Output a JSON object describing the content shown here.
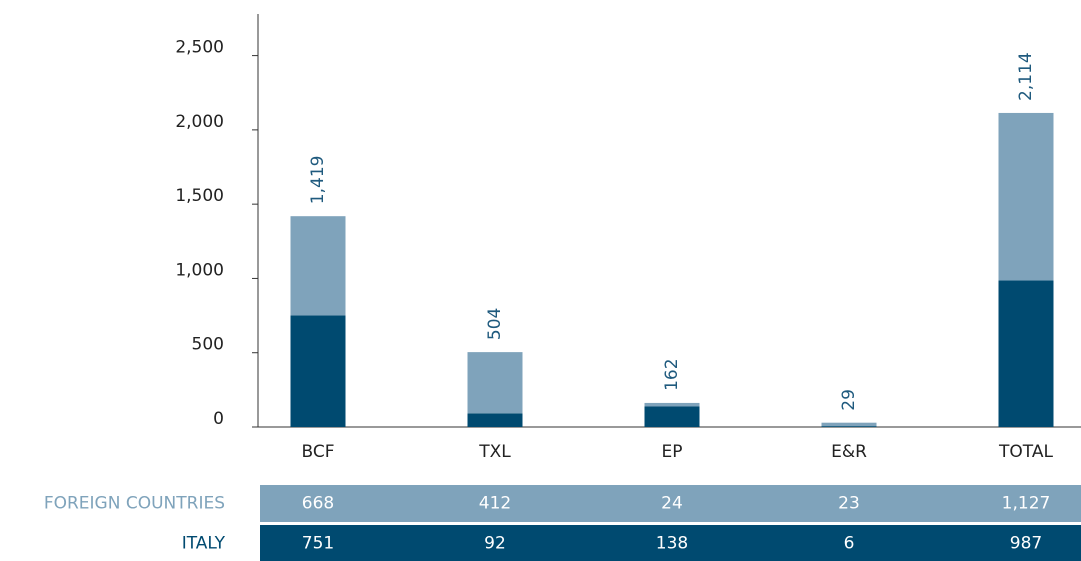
{
  "chart_data": {
    "type": "bar",
    "stacked": true,
    "categories": [
      "BCF",
      "TXL",
      "EP",
      "E&R",
      "TOTAL"
    ],
    "series": [
      {
        "name": "ITALY",
        "color": "#004a70",
        "values": [
          751,
          92,
          138,
          6,
          987
        ]
      },
      {
        "name": "FOREIGN COUNTRIES",
        "color": "#7fa3bb",
        "values": [
          668,
          412,
          24,
          23,
          1127
        ],
        "value_labels": [
          "668",
          "412",
          "24",
          "23",
          "1,127"
        ]
      }
    ],
    "totals": {
      "values": [
        1419,
        504,
        162,
        29,
        2114
      ],
      "value_labels": [
        "1,419",
        "504",
        "162",
        "29",
        "2,114"
      ]
    },
    "ylim": [
      0,
      2780
    ],
    "yticks": [
      0,
      500,
      {
        "value": 1000,
        "label": "1,000"
      },
      {
        "value": 1500,
        "label": "1,500"
      },
      {
        "value": 2000,
        "label": "2,000"
      },
      {
        "value": 2500,
        "label": "2,500"
      }
    ]
  }
}
